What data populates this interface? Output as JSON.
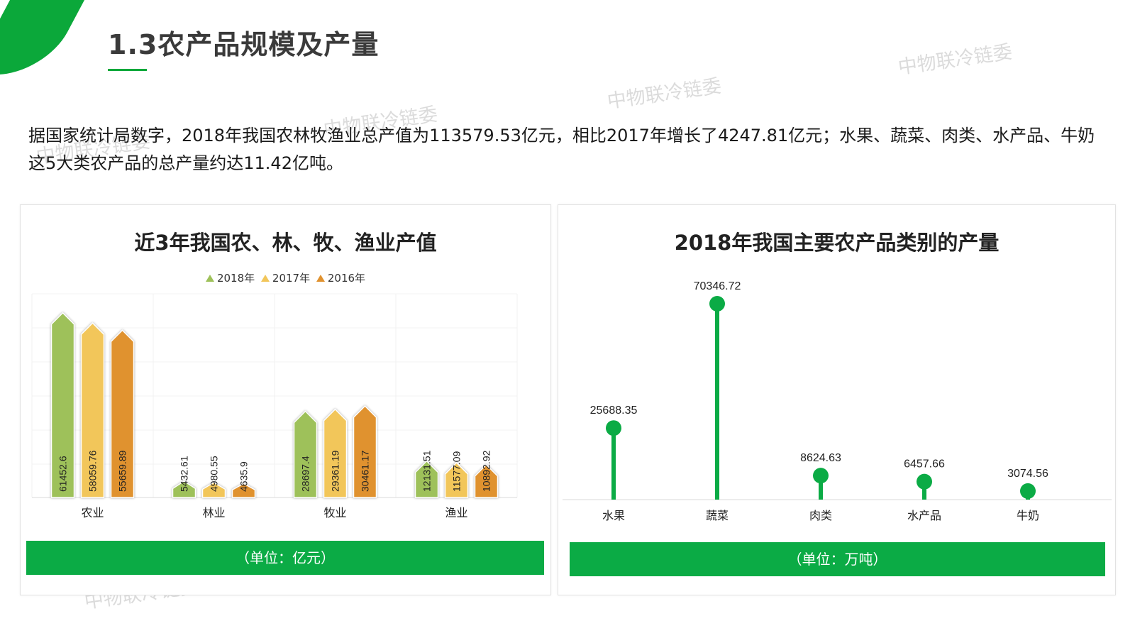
{
  "header": {
    "title": "1.3农产品规模及产量"
  },
  "watermark_text": "中物联冷链委",
  "intro_text": "据国家统计局数字，2018年我国农林牧渔业总产值为113579.53亿元，相比2017年增长了4247.81亿元；水果、蔬菜、肉类、水产品、牛奶这5大类农产品的总产量约达11.42亿吨。",
  "colors": {
    "accent": "#0ba83a",
    "green": "#9ec15a",
    "yellow": "#f2c65a",
    "orange": "#e0922f",
    "lollipop": "#0bab45"
  },
  "left_panel": {
    "title": "近3年我国农、林、牧、渔业产值",
    "unit": "（单位：亿元）"
  },
  "right_panel": {
    "title": "2018年我国主要农产品类别的产量",
    "unit": "（单位：万吨）"
  },
  "chart_data": [
    {
      "type": "bar",
      "title": "近3年我国农、林、牧、渔业产值",
      "categories": [
        "农业",
        "林业",
        "牧业",
        "渔业"
      ],
      "series": [
        {
          "name": "2018年",
          "values": [
            61452.6,
            5432.61,
            28697.4,
            12131.51
          ]
        },
        {
          "name": "2017年",
          "values": [
            58059.76,
            4980.55,
            29361.19,
            11577.09
          ]
        },
        {
          "name": "2016年",
          "values": [
            55659.89,
            4635.9,
            30461.17,
            10892.92
          ]
        }
      ],
      "ylim": [
        0,
        70000
      ],
      "legend": "top",
      "grid": true,
      "unit": "（单位：亿元）"
    },
    {
      "type": "lollipop",
      "title": "2018年我国主要农产品类别的产量",
      "categories": [
        "水果",
        "蔬菜",
        "肉类",
        "水产品",
        "牛奶"
      ],
      "values": [
        25688.35,
        70346.72,
        8624.63,
        6457.66,
        3074.56
      ],
      "ylim": [
        0,
        75000
      ],
      "grid": false,
      "unit": "（单位：万吨）"
    }
  ]
}
